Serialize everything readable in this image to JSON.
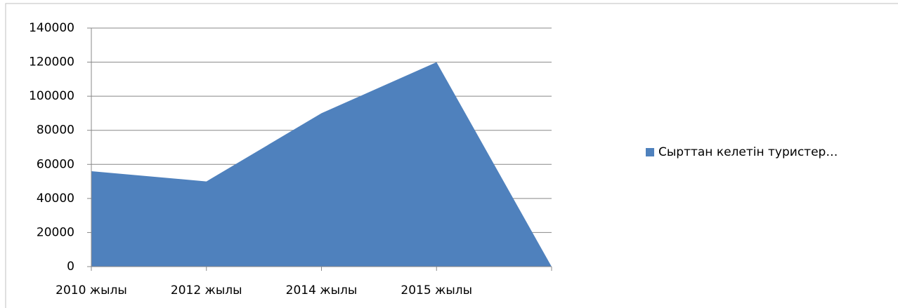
{
  "chart_data": {
    "type": "area",
    "categories": [
      "2010 жылы",
      "2012 жылы",
      "2014 жылы",
      "2015 жылы",
      null
    ],
    "series": [
      {
        "name": "Сырттан келетін туристер…",
        "color": "#4f81bd",
        "values": [
          56000,
          50000,
          90000,
          120000,
          0
        ]
      }
    ],
    "ylim": [
      0,
      140000
    ],
    "yticks": [
      0,
      20000,
      40000,
      60000,
      80000,
      100000,
      120000,
      140000
    ],
    "grid": true,
    "legend": "right"
  }
}
